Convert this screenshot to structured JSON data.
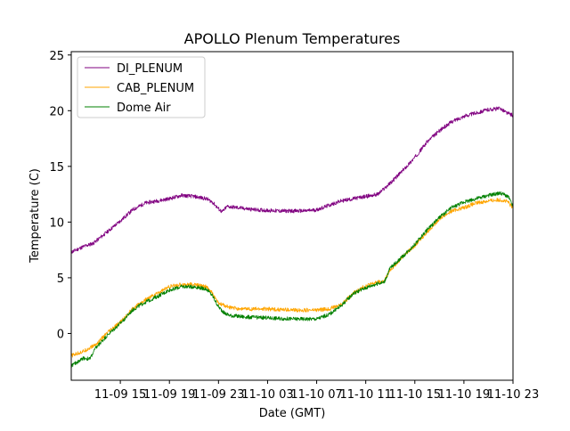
{
  "chart_data": {
    "type": "line",
    "title": "APOLLO Plenum Temperatures",
    "xlabel": "Date (GMT)",
    "ylabel": "Temperature (C)",
    "xlim_hours": [
      0.0,
      36.0
    ],
    "ylim": [
      -4.2,
      25.3
    ],
    "x_ticks": [
      {
        "hour": 4,
        "label": "11-09 15"
      },
      {
        "hour": 8,
        "label": "11-09 19"
      },
      {
        "hour": 12,
        "label": "11-09 23"
      },
      {
        "hour": 16,
        "label": "11-10 03"
      },
      {
        "hour": 20,
        "label": "11-10 07"
      },
      {
        "hour": 24,
        "label": "11-10 11"
      },
      {
        "hour": 28,
        "label": "11-10 15"
      },
      {
        "hour": 32,
        "label": "11-10 19"
      },
      {
        "hour": 36,
        "label": "11-10 23"
      }
    ],
    "y_ticks": [
      0,
      5,
      10,
      15,
      20,
      25
    ],
    "legend_position": "top-left",
    "grid": false,
    "series": [
      {
        "name": "DI_PLENUM",
        "color": "#800080",
        "x": [
          0.0,
          1.0,
          1.8,
          2.8,
          4.0,
          5.0,
          6.0,
          7.0,
          8.0,
          9.0,
          10.0,
          11.0,
          11.5,
          12.0,
          12.3,
          12.7,
          13.5,
          15.0,
          17.0,
          19.0,
          20.0,
          21.0,
          22.0,
          23.0,
          24.0,
          25.0,
          26.0,
          27.0,
          28.0,
          29.0,
          30.0,
          31.0,
          32.0,
          33.0,
          34.0,
          35.0,
          35.5,
          36.0
        ],
        "values": [
          7.3,
          7.8,
          8.1,
          9.0,
          10.1,
          11.1,
          11.7,
          11.9,
          12.1,
          12.4,
          12.3,
          12.1,
          11.8,
          11.2,
          10.9,
          11.4,
          11.3,
          11.1,
          11.0,
          11.0,
          11.1,
          11.5,
          11.9,
          12.1,
          12.3,
          12.5,
          13.5,
          14.6,
          15.8,
          17.2,
          18.2,
          19.0,
          19.5,
          19.8,
          20.1,
          20.2,
          19.8,
          19.6
        ]
      },
      {
        "name": "CAB_PLENUM",
        "color": "#FFA500",
        "x": [
          0.0,
          1.0,
          2.0,
          3.0,
          4.0,
          5.0,
          6.0,
          7.0,
          8.0,
          9.0,
          10.0,
          11.0,
          11.5,
          12.0,
          12.5,
          13.0,
          14.0,
          16.0,
          18.0,
          20.0,
          21.0,
          22.0,
          23.0,
          24.0,
          25.0,
          25.5,
          26.0,
          27.0,
          28.0,
          29.0,
          30.0,
          31.0,
          32.0,
          33.0,
          34.0,
          35.0,
          35.6,
          36.0
        ],
        "values": [
          -2.0,
          -1.6,
          -1.0,
          0.1,
          1.0,
          2.2,
          3.0,
          3.6,
          4.2,
          4.4,
          4.4,
          4.2,
          3.6,
          2.7,
          2.5,
          2.3,
          2.2,
          2.2,
          2.1,
          2.1,
          2.2,
          2.6,
          3.6,
          4.3,
          4.6,
          4.7,
          5.7,
          6.9,
          7.9,
          9.1,
          10.3,
          11.0,
          11.3,
          11.7,
          11.9,
          12.0,
          11.8,
          11.2
        ]
      },
      {
        "name": "Dome Air",
        "color": "#008000",
        "x": [
          0.0,
          0.6,
          1.0,
          1.5,
          2.0,
          3.0,
          4.0,
          5.0,
          6.0,
          7.0,
          8.0,
          9.0,
          10.0,
          11.0,
          11.5,
          12.0,
          12.5,
          13.0,
          14.0,
          16.0,
          18.0,
          20.0,
          21.0,
          22.0,
          23.0,
          24.0,
          25.0,
          25.5,
          26.0,
          27.0,
          28.0,
          29.0,
          30.0,
          31.0,
          32.0,
          33.0,
          34.0,
          35.0,
          35.6,
          36.0
        ],
        "values": [
          -2.9,
          -2.5,
          -2.2,
          -2.3,
          -1.3,
          -0.1,
          0.9,
          2.1,
          2.8,
          3.3,
          3.9,
          4.2,
          4.2,
          4.0,
          3.4,
          2.4,
          1.8,
          1.6,
          1.5,
          1.4,
          1.3,
          1.3,
          1.7,
          2.5,
          3.6,
          4.1,
          4.5,
          4.6,
          5.9,
          6.9,
          8.0,
          9.3,
          10.4,
          11.3,
          11.8,
          12.1,
          12.4,
          12.6,
          12.3,
          11.4
        ]
      }
    ]
  }
}
